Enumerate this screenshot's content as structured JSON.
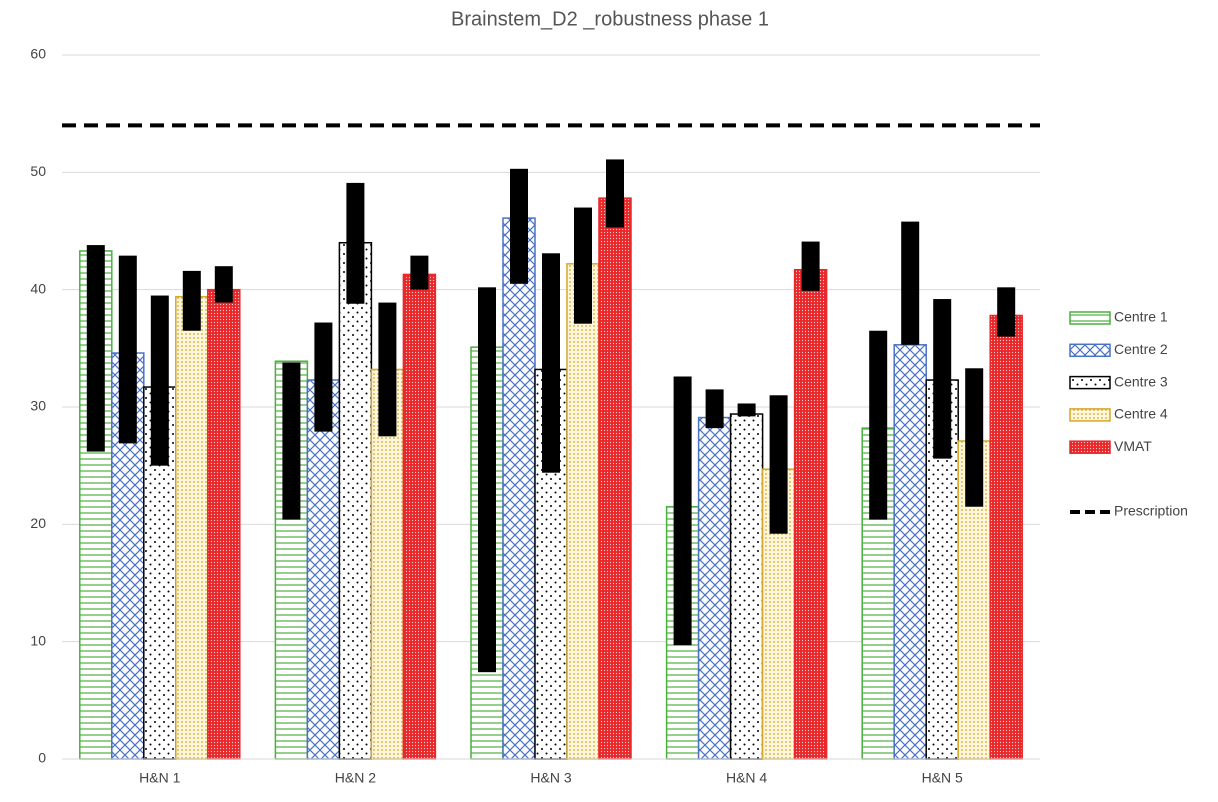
{
  "chart_data": {
    "type": "bar",
    "title": "Brainstem_D2 _robustness phase 1",
    "categories": [
      "H&N 1",
      "H&N 2",
      "H&N 3",
      "H&N 4",
      "H&N 5"
    ],
    "series": [
      {
        "name": "Centre 1",
        "color": "#4caf3f",
        "pattern": "horizontal",
        "values": [
          43.3,
          33.9,
          35.1,
          21.5,
          28.2
        ],
        "range_low": [
          26.2,
          20.4,
          7.4,
          9.7,
          20.4
        ],
        "range_high": [
          43.8,
          33.8,
          40.2,
          32.6,
          36.5
        ]
      },
      {
        "name": "Centre 2",
        "color": "#4a72c4",
        "pattern": "crosshatch",
        "values": [
          34.6,
          32.3,
          46.1,
          29.1,
          35.3
        ],
        "range_low": [
          26.9,
          27.9,
          40.5,
          28.2,
          35.3
        ],
        "range_high": [
          42.9,
          37.2,
          50.3,
          31.5,
          45.8
        ]
      },
      {
        "name": "Centre 3",
        "color": "#000000",
        "pattern": "dots",
        "values": [
          31.7,
          44.0,
          33.2,
          29.4,
          32.3
        ],
        "range_low": [
          25.0,
          38.8,
          24.4,
          29.2,
          25.6
        ],
        "range_high": [
          39.5,
          49.1,
          43.1,
          30.3,
          39.2
        ]
      },
      {
        "name": "Centre 4",
        "color": "#d4a82a",
        "pattern": "dense-dots",
        "values": [
          39.4,
          33.2,
          42.2,
          24.7,
          27.1
        ],
        "range_low": [
          36.5,
          27.5,
          37.1,
          19.2,
          21.5
        ],
        "range_high": [
          41.6,
          38.9,
          47.0,
          31.0,
          33.3
        ]
      },
      {
        "name": "VMAT",
        "color": "#e8282b",
        "pattern": "dense",
        "values": [
          40.0,
          41.3,
          47.8,
          41.7,
          37.8
        ],
        "range_low": [
          38.9,
          40.0,
          45.3,
          39.9,
          36.0
        ],
        "range_high": [
          42.0,
          42.9,
          51.1,
          44.1,
          40.2
        ]
      }
    ],
    "reference_lines": [
      {
        "name": "Prescription",
        "value": 54,
        "color": "#000000"
      }
    ],
    "ylim": [
      0,
      60
    ],
    "yticks": [
      0,
      10,
      20,
      30,
      40,
      50,
      60
    ],
    "grid": true,
    "legend": "right"
  }
}
